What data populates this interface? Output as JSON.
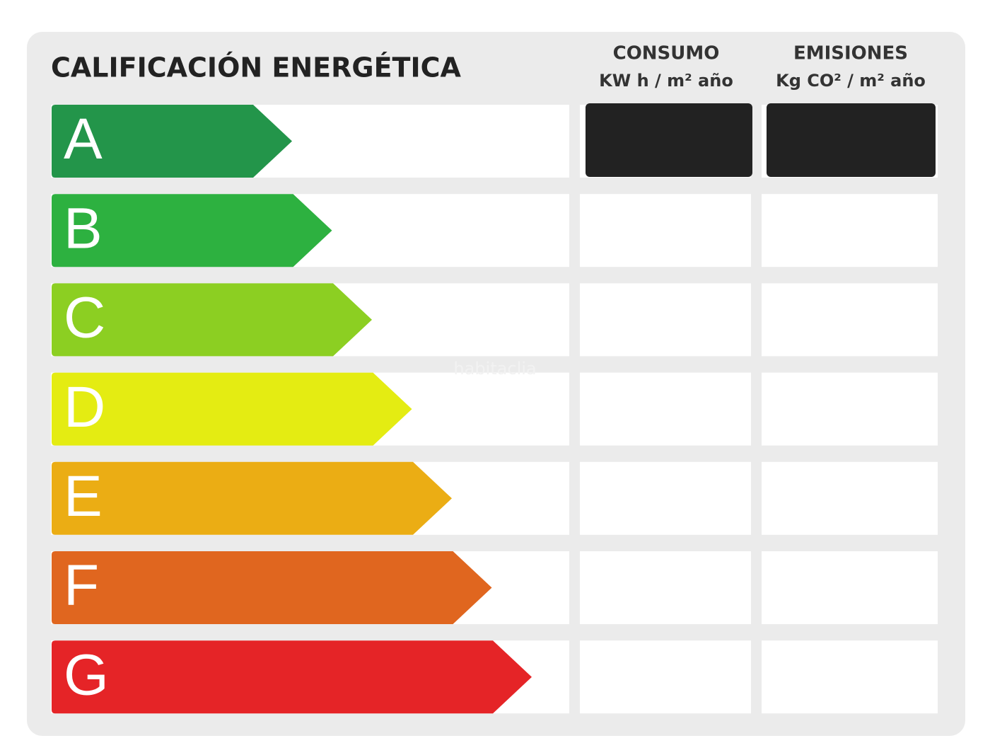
{
  "header": {
    "title": "CALIFICACIÓN ENERGÉTICA"
  },
  "columns": [
    {
      "title": "CONSUMO",
      "unit": "KW h / m² año"
    },
    {
      "title": "EMISIONES",
      "unit": "Kg CO² / m² año"
    }
  ],
  "ratings": [
    {
      "letter": "A",
      "color": "#23954a"
    },
    {
      "letter": "B",
      "color": "#2db140"
    },
    {
      "letter": "C",
      "color": "#8ccf22"
    },
    {
      "letter": "D",
      "color": "#e4ec12"
    },
    {
      "letter": "E",
      "color": "#ebad14"
    },
    {
      "letter": "F",
      "color": "#e0661f"
    },
    {
      "letter": "G",
      "color": "#e52427"
    }
  ],
  "watermark": "habitaclia"
}
